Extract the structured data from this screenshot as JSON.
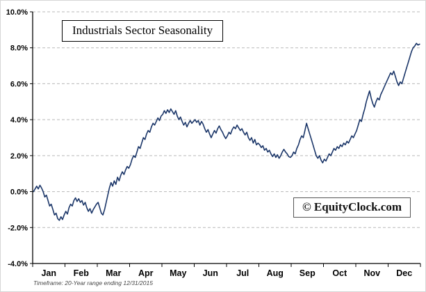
{
  "page": {
    "title_box": "Industrials Sector Seasonality",
    "watermark": "© EquityClock.com",
    "footnote": "Timeframe: 20-Year range ending 12/31/2015"
  },
  "chart_data": {
    "type": "line",
    "title": "Industrials Sector Seasonality",
    "xlabel": "",
    "ylabel": "",
    "x_categories": [
      "Jan",
      "Feb",
      "Mar",
      "Apr",
      "May",
      "Jun",
      "Jul",
      "Aug",
      "Sep",
      "Oct",
      "Nov",
      "Dec"
    ],
    "y_tick_labels": [
      "10.0%",
      "8.0%",
      "6.0%",
      "4.0%",
      "2.0%",
      "0.0%",
      "-2.0%",
      "-4.0%"
    ],
    "ylim": [
      -4,
      10
    ],
    "y_tick_step": 2,
    "grid": "horizontal-dashed",
    "legend_position": "none",
    "colors": {
      "line": "#1A3568",
      "grid": "#b8b8b8",
      "axis": "#000000",
      "text": "#000000"
    },
    "series": [
      {
        "name": "Industrials Sector Seasonality (20-Year average, ending 12/31/2015)",
        "values": [
          0.0,
          0.15,
          0.3,
          0.15,
          0.35,
          0.2,
          0.0,
          -0.3,
          -0.2,
          -0.5,
          -0.8,
          -0.7,
          -1.0,
          -1.3,
          -1.2,
          -1.5,
          -1.6,
          -1.4,
          -1.55,
          -1.3,
          -1.1,
          -1.25,
          -0.9,
          -0.7,
          -0.8,
          -0.5,
          -0.35,
          -0.55,
          -0.4,
          -0.6,
          -0.5,
          -0.75,
          -0.6,
          -0.9,
          -1.1,
          -0.95,
          -1.2,
          -1.0,
          -0.85,
          -0.7,
          -0.6,
          -0.9,
          -1.2,
          -1.3,
          -1.0,
          -0.6,
          -0.2,
          0.2,
          0.5,
          0.3,
          0.6,
          0.4,
          0.8,
          0.6,
          0.9,
          1.1,
          0.95,
          1.2,
          1.4,
          1.3,
          1.5,
          1.8,
          2.0,
          1.9,
          2.2,
          2.5,
          2.4,
          2.7,
          3.0,
          2.9,
          3.2,
          3.4,
          3.3,
          3.6,
          3.8,
          3.7,
          3.9,
          4.1,
          3.95,
          4.2,
          4.3,
          4.5,
          4.35,
          4.55,
          4.4,
          4.6,
          4.45,
          4.3,
          4.5,
          4.2,
          4.0,
          4.15,
          3.9,
          3.7,
          3.85,
          3.6,
          3.8,
          3.95,
          3.8,
          3.9,
          4.0,
          3.85,
          3.95,
          3.7,
          3.9,
          3.75,
          3.5,
          3.3,
          3.45,
          3.2,
          3.0,
          3.2,
          3.4,
          3.25,
          3.5,
          3.65,
          3.45,
          3.3,
          3.1,
          2.95,
          3.1,
          3.3,
          3.2,
          3.45,
          3.6,
          3.5,
          3.7,
          3.55,
          3.4,
          3.5,
          3.3,
          3.15,
          3.3,
          3.0,
          2.85,
          3.0,
          2.7,
          2.9,
          2.6,
          2.7,
          2.6,
          2.45,
          2.55,
          2.3,
          2.4,
          2.2,
          2.3,
          2.1,
          1.95,
          2.1,
          1.9,
          2.05,
          1.85,
          2.0,
          2.2,
          2.35,
          2.2,
          2.1,
          1.95,
          1.9,
          2.0,
          2.2,
          2.1,
          2.4,
          2.6,
          2.9,
          3.1,
          3.0,
          3.4,
          3.8,
          3.5,
          3.2,
          2.9,
          2.6,
          2.3,
          2.0,
          1.85,
          2.0,
          1.75,
          1.6,
          1.8,
          1.7,
          1.9,
          2.1,
          2.0,
          2.2,
          2.4,
          2.3,
          2.5,
          2.4,
          2.6,
          2.5,
          2.7,
          2.6,
          2.8,
          2.7,
          2.9,
          3.1,
          3.0,
          3.2,
          3.4,
          3.7,
          4.0,
          3.9,
          4.3,
          4.6,
          5.0,
          5.3,
          5.6,
          5.2,
          4.9,
          4.7,
          5.0,
          5.2,
          5.1,
          5.4,
          5.6,
          5.8,
          6.0,
          6.2,
          6.4,
          6.6,
          6.5,
          6.7,
          6.4,
          6.1,
          5.9,
          6.1,
          6.0,
          6.3,
          6.6,
          6.9,
          7.2,
          7.5,
          7.8,
          8.0,
          8.1,
          8.25,
          8.15,
          8.2
        ]
      }
    ]
  }
}
